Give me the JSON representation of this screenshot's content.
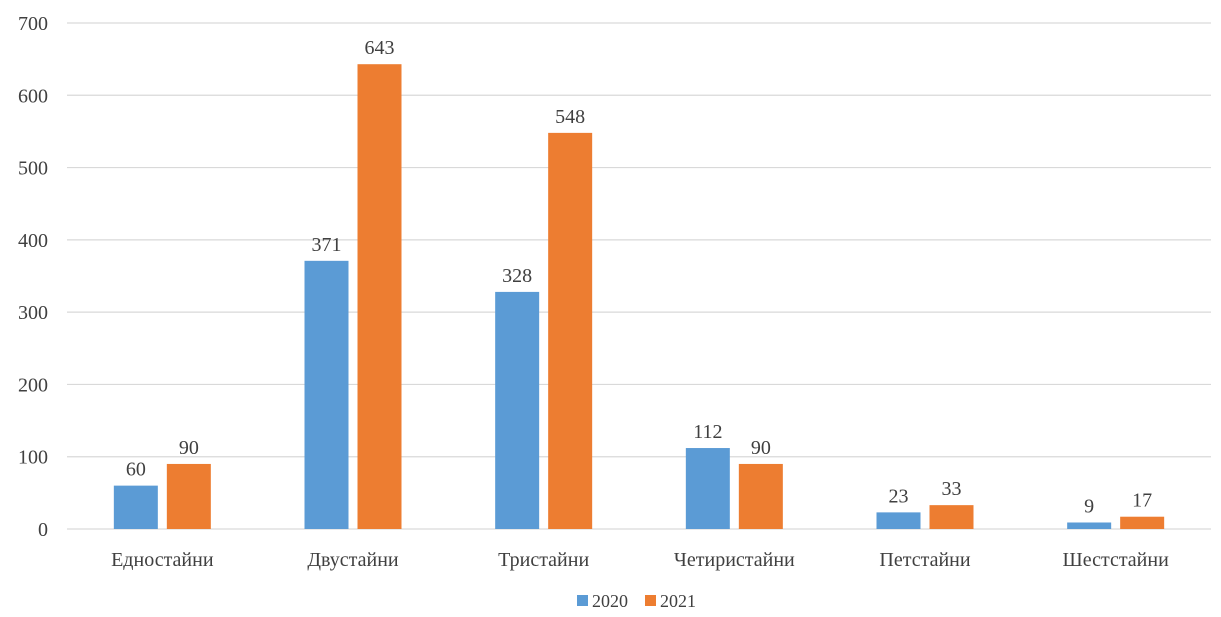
{
  "chart_data": {
    "type": "bar",
    "title": "",
    "xlabel": "",
    "ylabel": "",
    "ylim": [
      0,
      700
    ],
    "yticks": [
      0,
      100,
      200,
      300,
      400,
      500,
      600,
      700
    ],
    "grid": true,
    "legend_position": "bottom",
    "categories": [
      "Едностайни",
      "Двустайни",
      "Тристайни",
      "Четиристайни",
      "Петстайни",
      "Шестстайни"
    ],
    "series": [
      {
        "name": "2020",
        "color": "#5b9bd5",
        "values": [
          60,
          371,
          328,
          112,
          23,
          9
        ]
      },
      {
        "name": "2021",
        "color": "#ed7d31",
        "values": [
          90,
          643,
          548,
          90,
          33,
          17
        ]
      }
    ],
    "data_labels": true
  }
}
